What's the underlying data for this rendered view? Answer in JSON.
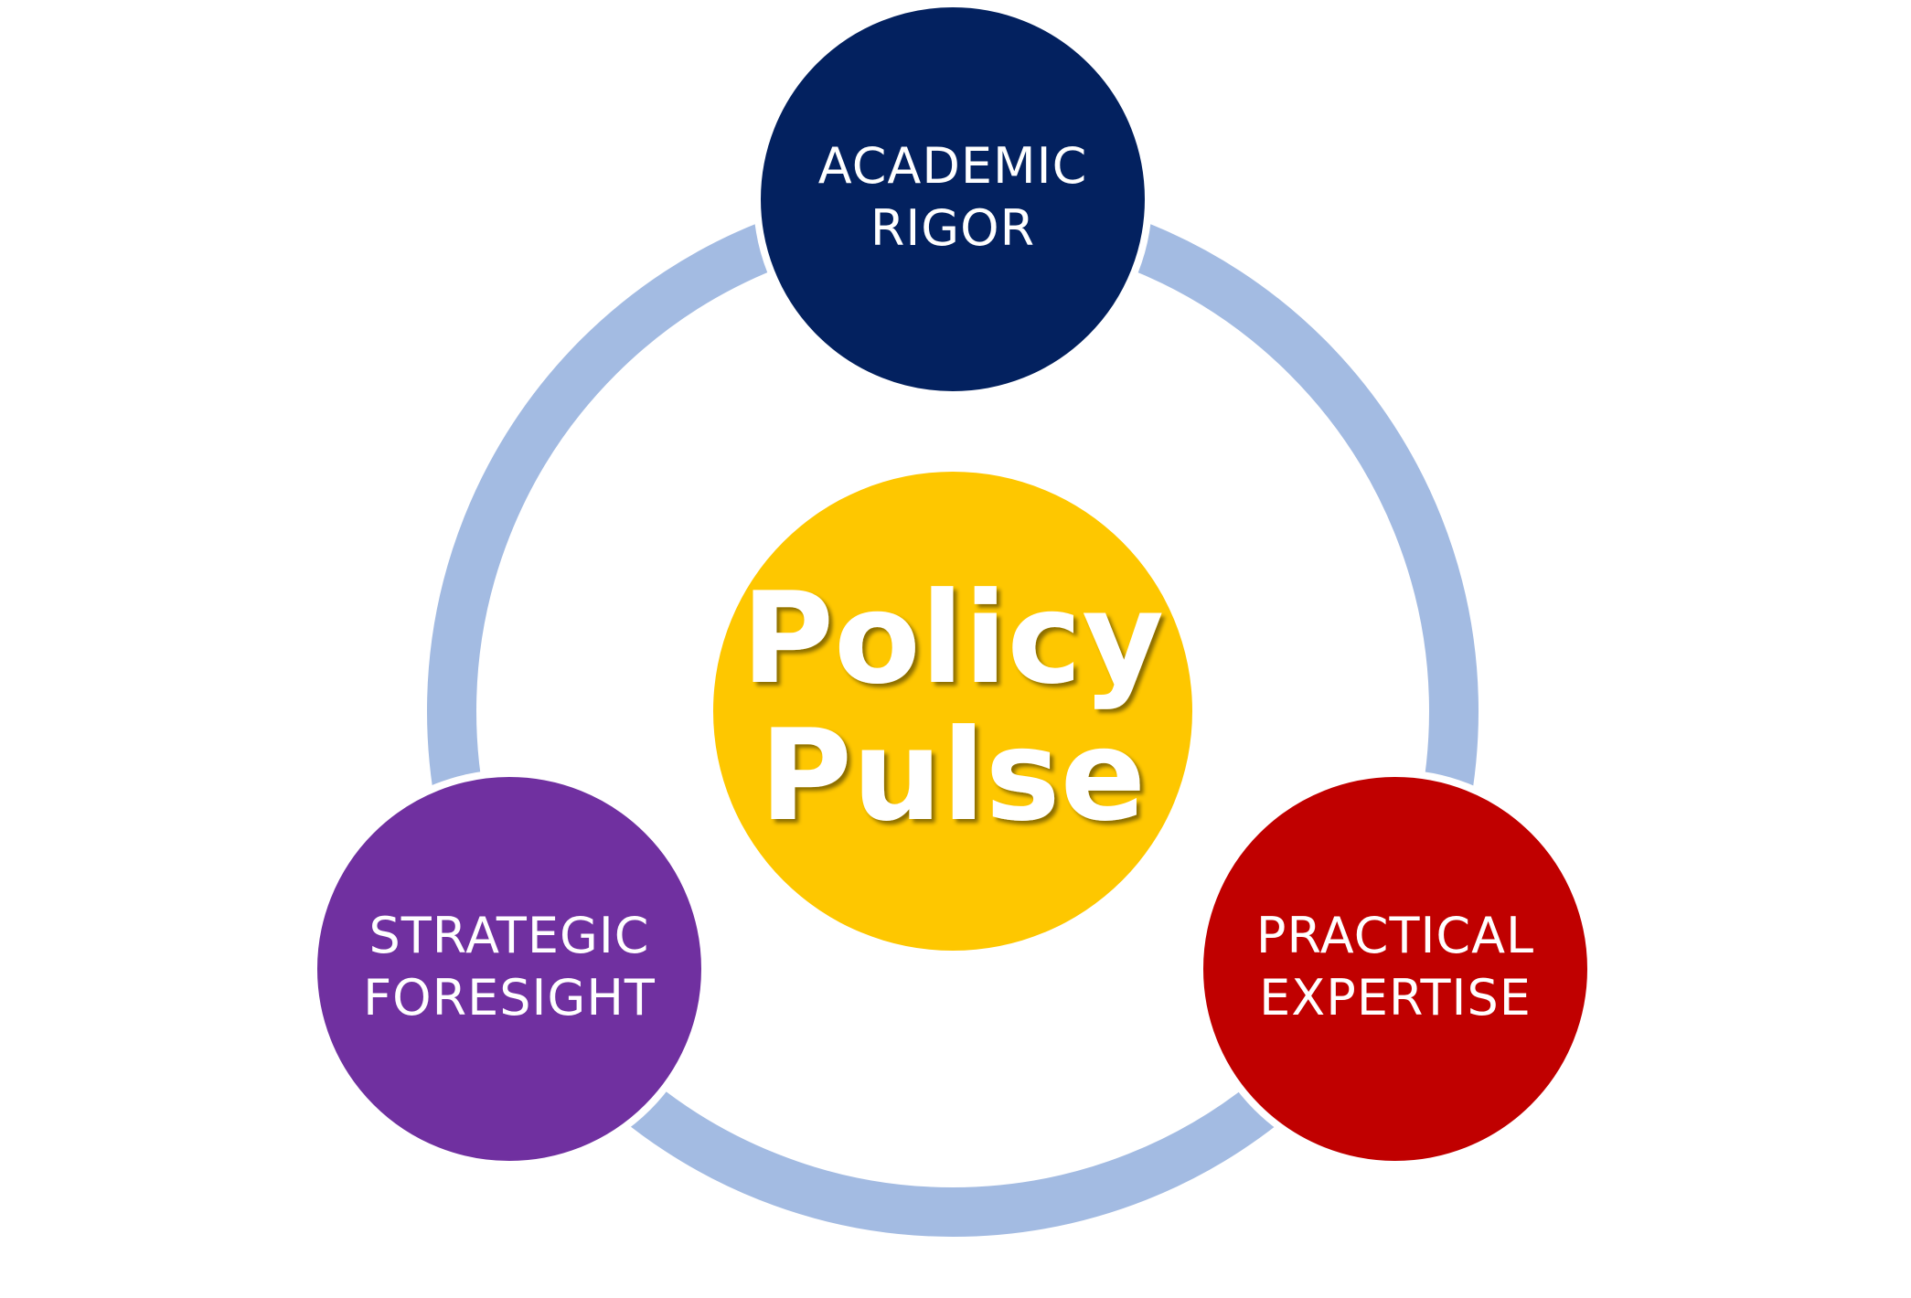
{
  "center": {
    "line1": "Policy",
    "line2": "Pulse",
    "color": "#fec700"
  },
  "nodes": [
    {
      "id": "academic-rigor",
      "line1": "ACADEMIC",
      "line2": "RIGOR",
      "color": "#03215f"
    },
    {
      "id": "practical-expertise",
      "line1": "PRACTICAL",
      "line2": "EXPERTISE",
      "color": "#c00000"
    },
    {
      "id": "strategic-foresight",
      "line1": "STRATEGIC",
      "line2": "FORESIGHT",
      "color": "#7030a0"
    }
  ],
  "ring": {
    "color": "#a3bbe2"
  }
}
